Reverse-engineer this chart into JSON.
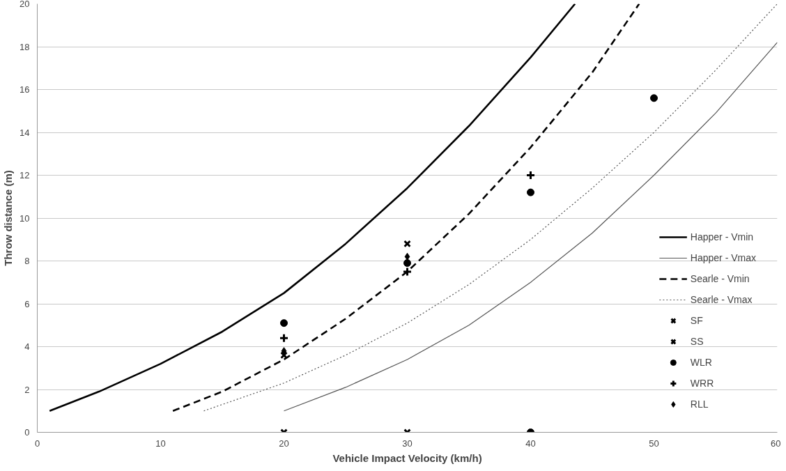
{
  "chart_data": {
    "type": "line",
    "xlabel": "Vehicle Impact Velocity (km/h)",
    "ylabel": "Throw distance (m)",
    "xlim": [
      0,
      60
    ],
    "ylim": [
      0,
      20
    ],
    "xticks": [
      0,
      10,
      20,
      30,
      40,
      50,
      60
    ],
    "yticks": [
      0,
      2,
      4,
      6,
      8,
      10,
      12,
      14,
      16,
      18,
      20
    ],
    "grid": "y",
    "legend": "bottom right",
    "series": [
      {
        "name": "Happer - Vmin",
        "line_style": "solid",
        "color": "#000000",
        "x": [
          1,
          5,
          10,
          15,
          20,
          25,
          30,
          35,
          40,
          43.6
        ],
        "values": [
          1.0,
          1.9,
          3.2,
          4.7,
          6.5,
          8.8,
          11.4,
          14.3,
          17.5,
          20.0
        ]
      },
      {
        "name": "Happer - Vmax",
        "line_style": "solid",
        "color": "#555555",
        "x": [
          20,
          25,
          30,
          35,
          40,
          45,
          50,
          55,
          60
        ],
        "values": [
          1.0,
          2.1,
          3.4,
          5.0,
          7.0,
          9.3,
          12.0,
          14.9,
          18.2
        ]
      },
      {
        "name": "Searle - Vmin",
        "line_style": "dashed",
        "color": "#000000",
        "x": [
          11,
          15,
          20,
          25,
          30,
          35,
          40,
          45,
          48.8
        ],
        "values": [
          1.0,
          1.9,
          3.4,
          5.3,
          7.5,
          10.2,
          13.3,
          16.8,
          20.0
        ]
      },
      {
        "name": "Searle - Vmax",
        "line_style": "dotted",
        "color": "#555555",
        "x": [
          13.5,
          20,
          25,
          30,
          35,
          40,
          45,
          50,
          55,
          60
        ],
        "values": [
          1.0,
          2.3,
          3.6,
          5.1,
          6.9,
          9.0,
          11.4,
          14.0,
          16.9,
          20.0
        ]
      },
      {
        "name": "SF",
        "type": "scatter",
        "marker": "x",
        "color": "#000000",
        "x": [
          20,
          30
        ],
        "values": [
          3.6,
          8.8
        ]
      },
      {
        "name": "SS",
        "type": "scatter",
        "marker": "x",
        "color": "#000000",
        "x": [
          20,
          30
        ],
        "values": [
          0,
          0
        ]
      },
      {
        "name": "WLR",
        "type": "scatter",
        "marker": "circle",
        "color": "#000000",
        "x": [
          20,
          30,
          40,
          50,
          40
        ],
        "values": [
          5.1,
          7.9,
          11.2,
          15.6,
          0
        ]
      },
      {
        "name": "WRR",
        "type": "scatter",
        "marker": "cross",
        "color": "#000000",
        "x": [
          20,
          30,
          40
        ],
        "values": [
          4.4,
          7.5,
          12.0
        ]
      },
      {
        "name": "RLL",
        "type": "scatter",
        "marker": "diamond",
        "color": "#000000",
        "x": [
          20,
          30
        ],
        "values": [
          3.8,
          8.2
        ]
      }
    ]
  }
}
